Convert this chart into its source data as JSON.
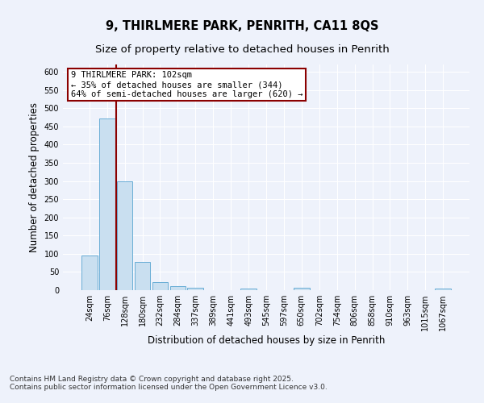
{
  "title1": "9, THIRLMERE PARK, PENRITH, CA11 8QS",
  "title2": "Size of property relative to detached houses in Penrith",
  "xlabel": "Distribution of detached houses by size in Penrith",
  "ylabel": "Number of detached properties",
  "categories": [
    "24sqm",
    "76sqm",
    "128sqm",
    "180sqm",
    "232sqm",
    "284sqm",
    "337sqm",
    "389sqm",
    "441sqm",
    "493sqm",
    "545sqm",
    "597sqm",
    "650sqm",
    "702sqm",
    "754sqm",
    "806sqm",
    "858sqm",
    "910sqm",
    "963sqm",
    "1015sqm",
    "1067sqm"
  ],
  "values": [
    95,
    472,
    300,
    78,
    22,
    10,
    7,
    0,
    0,
    5,
    0,
    0,
    7,
    0,
    0,
    0,
    0,
    0,
    0,
    0,
    5
  ],
  "bar_color": "#c9dff0",
  "bar_edge_color": "#6aaed6",
  "bar_alpha": 1.0,
  "vline_color": "#8b0000",
  "annotation_text": "9 THIRLMERE PARK: 102sqm\n← 35% of detached houses are smaller (344)\n64% of semi-detached houses are larger (620) →",
  "annotation_box_color": "#ffffff",
  "annotation_box_edge_color": "#8b0000",
  "ylim": [
    0,
    620
  ],
  "yticks": [
    0,
    50,
    100,
    150,
    200,
    250,
    300,
    350,
    400,
    450,
    500,
    550,
    600
  ],
  "footnote1": "Contains HM Land Registry data © Crown copyright and database right 2025.",
  "footnote2": "Contains public sector information licensed under the Open Government Licence v3.0.",
  "bg_color": "#eef2fb",
  "grid_color": "#ffffff",
  "title_fontsize": 10.5,
  "subtitle_fontsize": 9.5,
  "tick_fontsize": 7,
  "label_fontsize": 8.5,
  "footnote_fontsize": 6.5
}
